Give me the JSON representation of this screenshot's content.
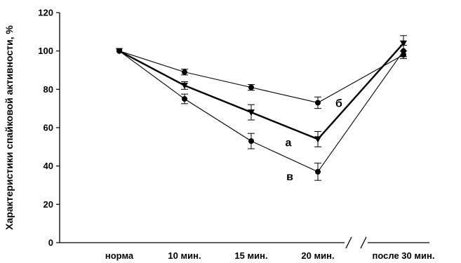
{
  "chart_data": {
    "type": "line",
    "ylabel": "Характеристики спайковой активности, %",
    "xlabel": "",
    "categories": [
      "норма",
      "10 мин.",
      "15 мин.",
      "20 мин.",
      "после 30 мин."
    ],
    "ylim": [
      0,
      120
    ],
    "yticks": [
      0,
      20,
      40,
      60,
      80,
      100,
      120
    ],
    "axis_break": "between 20 мин. and после 30 мин.",
    "grid": false,
    "series": [
      {
        "name": "б",
        "marker": "circle",
        "line_weight": "thin",
        "values": [
          100,
          89,
          81,
          73,
          98
        ],
        "errors": [
          0,
          1.5,
          1.5,
          3,
          2
        ]
      },
      {
        "name": "а",
        "marker": "triangle-down",
        "line_weight": "thick",
        "values": [
          100,
          82,
          68,
          54,
          104
        ],
        "errors": [
          0,
          2,
          4,
          4,
          4
        ]
      },
      {
        "name": "в",
        "marker": "circle",
        "line_weight": "thin",
        "values": [
          100,
          75,
          53,
          37,
          100
        ],
        "errors": [
          0,
          2.5,
          4,
          4.5,
          3
        ]
      }
    ],
    "colors": {
      "line": "#000000",
      "axis": "#000000",
      "background": "#ffffff"
    }
  }
}
